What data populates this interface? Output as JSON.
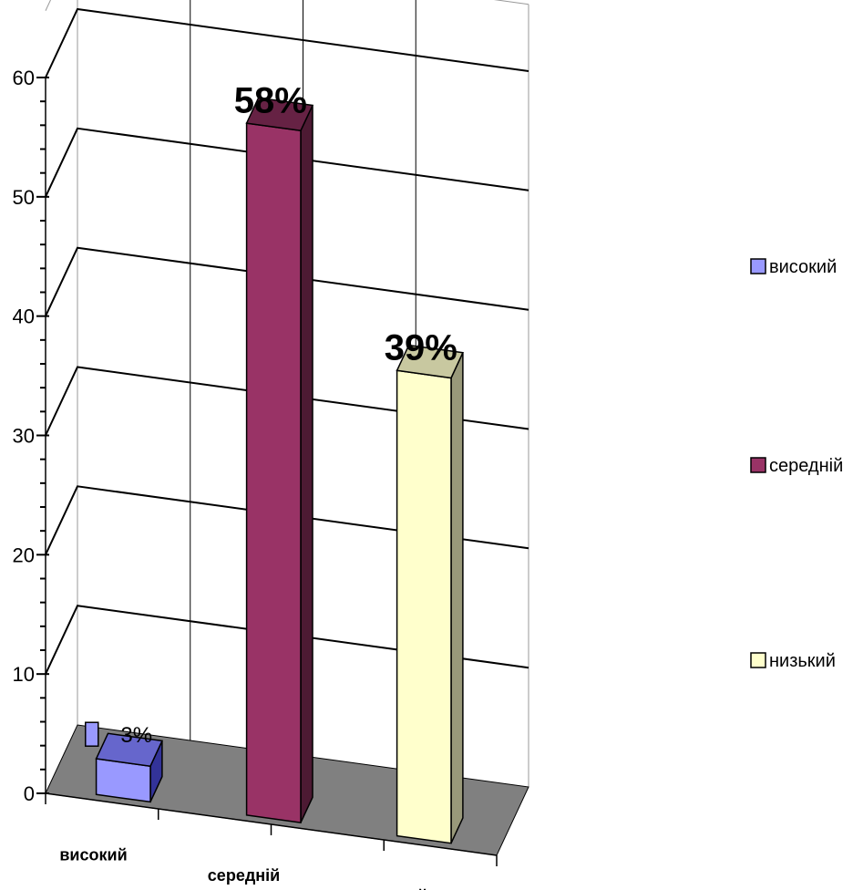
{
  "chart_data": {
    "type": "bar",
    "title": "",
    "xlabel": "",
    "ylabel": "",
    "categories": [
      "високий",
      "середній",
      "низький"
    ],
    "values": [
      3,
      58,
      39
    ],
    "data_labels": [
      "3%",
      "58%",
      "39%"
    ],
    "ylim": [
      0,
      60
    ],
    "yticks": [
      "0",
      "10",
      "20",
      "30",
      "40",
      "50",
      "60"
    ],
    "grid": true,
    "three_d": true,
    "legend": {
      "placement": "right",
      "entries": [
        "високий",
        "середній",
        "низький"
      ]
    },
    "colors": {
      "високий": {
        "front": "#9999ff",
        "top": "#6666cc",
        "side": "#333399"
      },
      "середній": {
        "front": "#993366",
        "top": "#662244",
        "side": "#4d1a33"
      },
      "низький": {
        "front": "#ffffcc",
        "top": "#c8c8a0",
        "side": "#99997a"
      },
      "floor": "#808080"
    }
  }
}
